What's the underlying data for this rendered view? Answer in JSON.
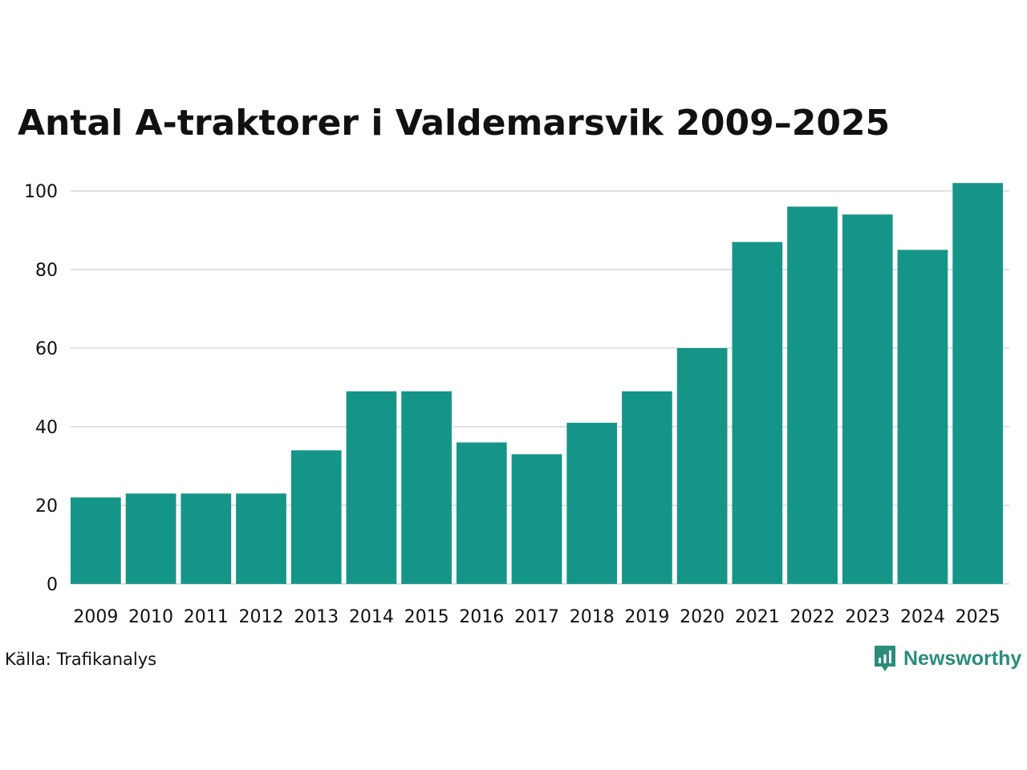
{
  "title": "Antal A-traktorer i Valdemarsvik 2009–2025",
  "source": "Källa: Trafikanalys",
  "brand": {
    "name": "Newsworthy",
    "icon": "newsworthy-logo-icon",
    "color": "#2b8c7b"
  },
  "colors": {
    "bar": "#159587",
    "grid": "#e1e1e1",
    "text": "#111111"
  },
  "chart_data": {
    "type": "bar",
    "title": "Antal A-traktorer i Valdemarsvik 2009–2025",
    "xlabel": "",
    "ylabel": "",
    "ylim": [
      0,
      100
    ],
    "yticks": [
      0,
      20,
      40,
      60,
      80,
      100
    ],
    "grid": true,
    "legend": "none",
    "categories": [
      "2009",
      "2010",
      "2011",
      "2012",
      "2013",
      "2014",
      "2015",
      "2016",
      "2017",
      "2018",
      "2019",
      "2020",
      "2021",
      "2022",
      "2023",
      "2024",
      "2025"
    ],
    "values": [
      22,
      23,
      23,
      23,
      34,
      49,
      49,
      36,
      33,
      41,
      49,
      60,
      87,
      96,
      94,
      85,
      102
    ]
  }
}
